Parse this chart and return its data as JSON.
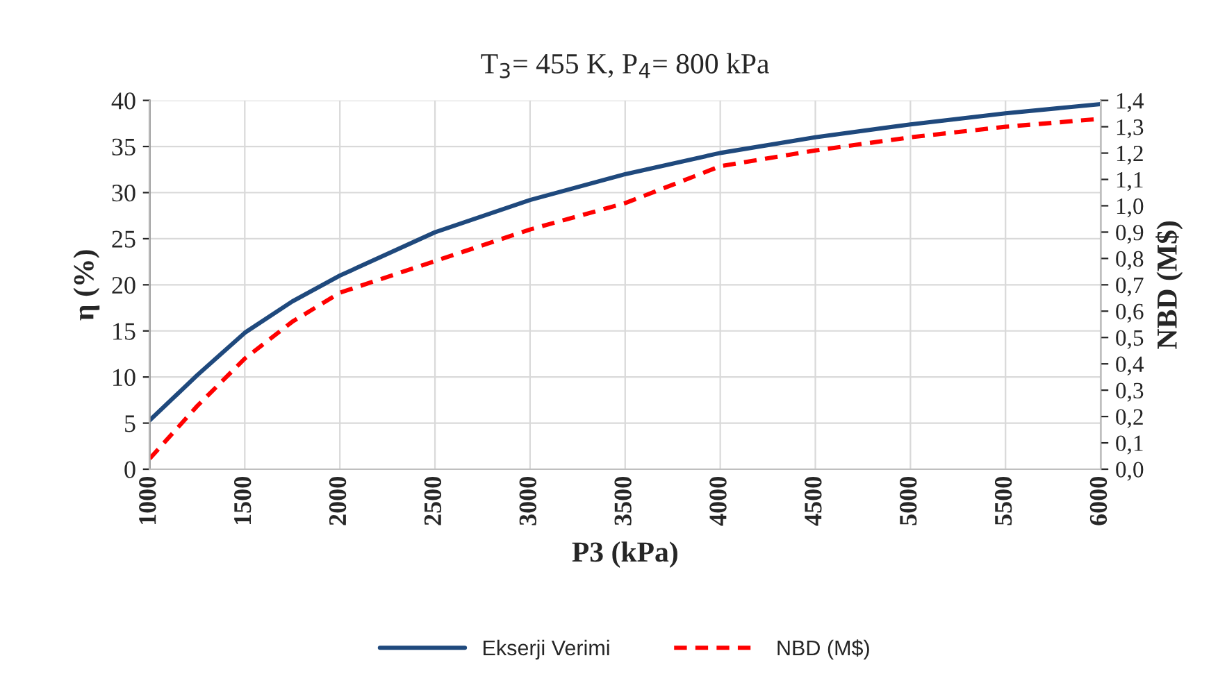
{
  "chart_data": {
    "type": "line",
    "title": "T$_{3}$= 455 K, P$_{4}$= 800 kPa",
    "xlabel": "P3 (kPa)",
    "ylabel": "η (%)",
    "y2label": "NBD (M$)",
    "x": [
      1000,
      1250,
      1500,
      1750,
      2000,
      2500,
      3000,
      3500,
      4000,
      4500,
      5000,
      5500,
      6000
    ],
    "series": [
      {
        "name": "Ekserji Verimi",
        "color": "#1f497d",
        "line_style": "solid",
        "values": [
          5.3,
          10.2,
          14.8,
          18.2,
          21.0,
          25.7,
          29.2,
          32.0,
          34.3,
          36.0,
          37.4,
          38.6,
          39.6
        ]
      },
      {
        "name": "NBD (M$)",
        "color": "#ff0000",
        "line_style": "dashed",
        "axis": "y2",
        "values": [
          0.04,
          0.24,
          0.42,
          0.56,
          0.67,
          0.79,
          0.91,
          1.01,
          1.15,
          1.21,
          1.26,
          1.3,
          1.33
        ]
      }
    ],
    "xlim": [
      1000,
      6000
    ],
    "xticks": [
      1000,
      1500,
      2000,
      2500,
      3000,
      3500,
      4000,
      4500,
      5000,
      5500,
      6000
    ],
    "ylim": [
      0,
      40
    ],
    "yticks": [
      0,
      5,
      10,
      15,
      20,
      25,
      30,
      35,
      40
    ],
    "y2lim": [
      0,
      1.4
    ],
    "y2ticks": [
      {
        "value": 0,
        "label": "0,0"
      },
      {
        "value": 0.1,
        "label": "0,1"
      },
      {
        "value": 0.2,
        "label": "0,2"
      },
      {
        "value": 0.3,
        "label": "0,3"
      },
      {
        "value": 0.4,
        "label": "0,4"
      },
      {
        "value": 0.5,
        "label": "0,5"
      },
      {
        "value": 0.6,
        "label": "0,6"
      },
      {
        "value": 0.7,
        "label": "0,7"
      },
      {
        "value": 0.8,
        "label": "0,8"
      },
      {
        "value": 0.9,
        "label": "0,9"
      },
      {
        "value": 1.0,
        "label": "1,0"
      },
      {
        "value": 1.1,
        "label": "1,1"
      },
      {
        "value": 1.2,
        "label": "1,2"
      },
      {
        "value": 1.3,
        "label": "1,3"
      },
      {
        "value": 1.4,
        "label": "1,4"
      }
    ],
    "grid": true,
    "legend": "bottom",
    "marker": "none"
  }
}
